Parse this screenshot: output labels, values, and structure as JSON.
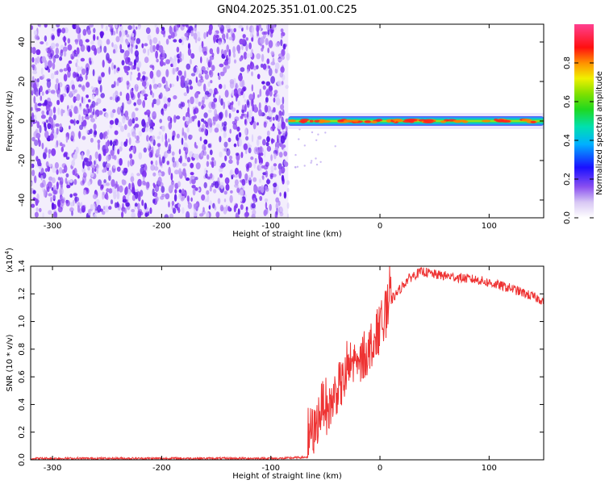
{
  "title": "GN04.2025.351.01.00.C25",
  "chart_data": [
    {
      "type": "heatmap",
      "title": "GN04.2025.351.01.00.C25",
      "xlabel": "Height of straight line (km)",
      "ylabel": "Frequency (Hz)",
      "xlim": [
        -320,
        150
      ],
      "ylim": [
        -49,
        49
      ],
      "x_ticks": [
        -300,
        -200,
        -100,
        0,
        100
      ],
      "y_ticks": [
        -40,
        -20,
        0,
        20,
        40
      ],
      "x_tick_labels": [
        "-300",
        "-200",
        "-100",
        "0",
        "100"
      ],
      "y_tick_labels": [
        "-40",
        "-20",
        "0",
        "20",
        "40"
      ],
      "noise_region_x": [
        -320,
        -84
      ],
      "signal_start_x": -84,
      "signal_band_hz": 0,
      "colorbar": {
        "label": "Normalized spectral amplitude",
        "range": [
          0.0,
          1.0
        ],
        "ticks": [
          0.0,
          0.2,
          0.4,
          0.6,
          0.8
        ],
        "tick_labels": [
          "0.0",
          "0.2",
          "0.4",
          "0.6",
          "0.8"
        ]
      }
    },
    {
      "type": "line",
      "xlabel": "Height of straight line (km)",
      "ylabel": "SNR (10 * v/v)",
      "scale_label": "(x10",
      "scale_exp": "4",
      "scale_close": ")",
      "xlim": [
        -320,
        150
      ],
      "ylim": [
        0.0,
        1.4
      ],
      "x_ticks": [
        -300,
        -200,
        -100,
        0,
        100
      ],
      "y_ticks": [
        0.0,
        0.2,
        0.4,
        0.6,
        0.8,
        1.0,
        1.2,
        1.4
      ],
      "x_tick_labels": [
        "-300",
        "-200",
        "-100",
        "0",
        "100"
      ],
      "y_tick_labels": [
        "0.0",
        "0.2",
        "0.4",
        "0.6",
        "0.8",
        "1.0",
        "1.2",
        "1.4"
      ],
      "line_color": "#ee3333",
      "series": [
        {
          "name": "SNR",
          "x": [
            -320,
            -250,
            -150,
            -90,
            -66,
            -64,
            -60,
            -55,
            -50,
            -48,
            -45,
            -40,
            -35,
            -30,
            -25,
            -20,
            -15,
            -10,
            -5,
            0,
            5,
            10,
            15,
            20,
            25,
            30,
            35,
            40,
            45,
            50,
            60,
            70,
            80,
            90,
            100,
            110,
            120,
            130,
            140,
            150
          ],
          "values": [
            0.01,
            0.01,
            0.01,
            0.01,
            0.02,
            0.22,
            0.2,
            0.35,
            0.45,
            0.3,
            0.4,
            0.5,
            0.55,
            0.6,
            0.72,
            0.65,
            0.75,
            0.8,
            0.88,
            0.95,
            1.05,
            1.15,
            1.2,
            1.25,
            1.3,
            1.33,
            1.35,
            1.36,
            1.35,
            1.34,
            1.33,
            1.32,
            1.31,
            1.3,
            1.28,
            1.26,
            1.24,
            1.21,
            1.18,
            1.15
          ]
        }
      ]
    }
  ]
}
